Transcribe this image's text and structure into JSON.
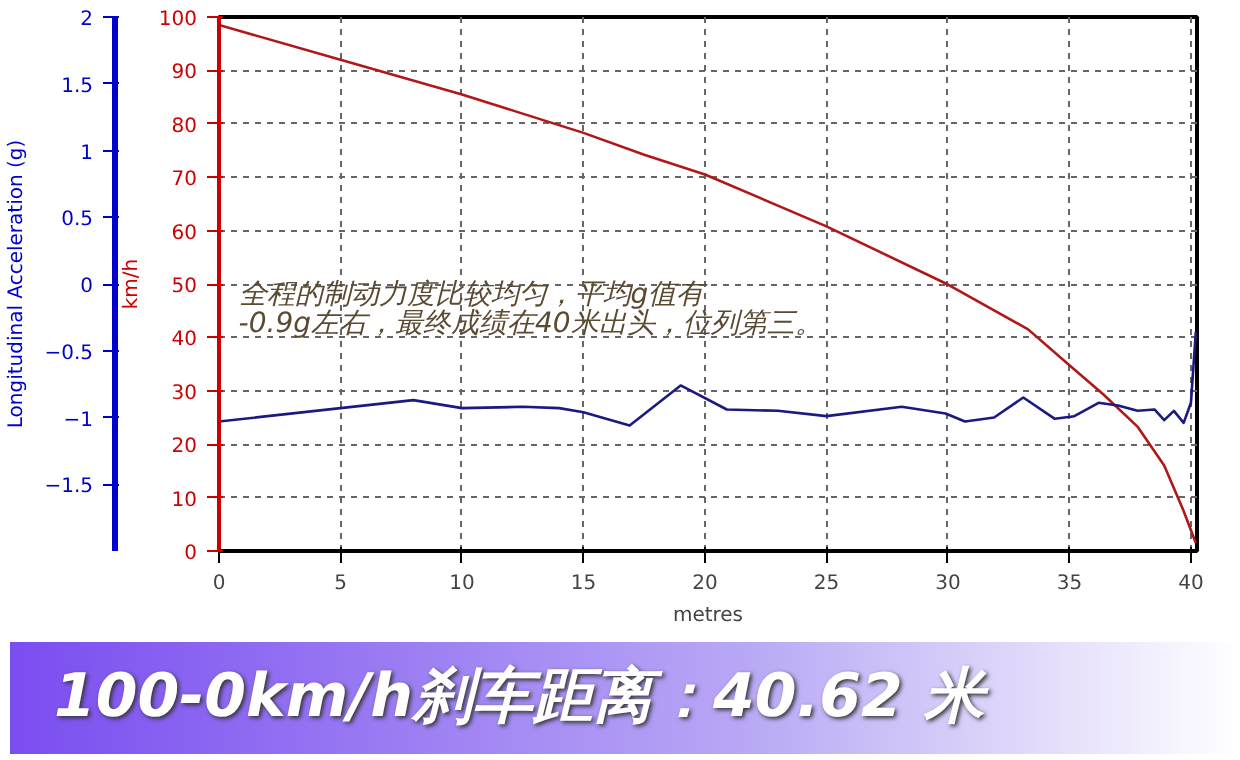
{
  "chart_data": {
    "type": "line",
    "title": "100-0km/h刹车距离：40.62 米",
    "xlabel": "metres",
    "ylabel": "km/h",
    "y2label": "Longitudinal Acceleration (g)",
    "annotations": [
      "全程的制动力度比较均匀，平均g值有\n-0.9g左右，最终成绩在40米出头，位列第三。"
    ],
    "series": [
      {
        "color": "#b01818",
        "x": [
          0,
          5,
          10,
          15,
          17.5,
          20,
          25,
          30,
          33.3,
          35,
          36.4,
          37.8,
          38.9,
          39.7,
          40.2
        ],
        "values": [
          98.5,
          92,
          85.5,
          78.3,
          74.2,
          70.5,
          60.8,
          49.9,
          41.5,
          34.8,
          29.3,
          23.3,
          16,
          7.5,
          1.5
        ]
      },
      {
        "color": "#1a1a80",
        "axis": "y2",
        "x": [
          0,
          8,
          10,
          12.5,
          14,
          15,
          16.9,
          19,
          20.9,
          23,
          25,
          28.1,
          29.9,
          30.7,
          31.9,
          33.1,
          34.4,
          35.2,
          36.2,
          37,
          37.8,
          38.5,
          38.9,
          39.3,
          39.7,
          40,
          40.2
        ],
        "values": [
          -1.03,
          -0.87,
          -0.93,
          -0.92,
          -0.93,
          -0.96,
          -1.06,
          -0.76,
          -0.94,
          -0.95,
          -0.99,
          -0.92,
          -0.97,
          -1.03,
          -1,
          -0.85,
          -1.01,
          -0.99,
          -0.89,
          -0.91,
          -0.95,
          -0.94,
          -1.02,
          -0.95,
          -1.04,
          -0.89,
          -0.36
        ]
      }
    ],
    "xlim": [
      0,
      40.25
    ],
    "xticks": [
      0,
      5,
      10,
      15,
      20,
      25,
      30,
      35,
      40
    ],
    "ylim": [
      0,
      100
    ],
    "yticks": [
      0,
      10,
      20,
      30,
      40,
      50,
      60,
      70,
      80,
      90,
      100
    ],
    "y2lim": [
      -2,
      2
    ],
    "y2ticks": [
      -1.5,
      -1,
      -0.5,
      0,
      0.5,
      1,
      1.5,
      2
    ],
    "grid": true,
    "marker": "none",
    "line_style": "solid"
  }
}
